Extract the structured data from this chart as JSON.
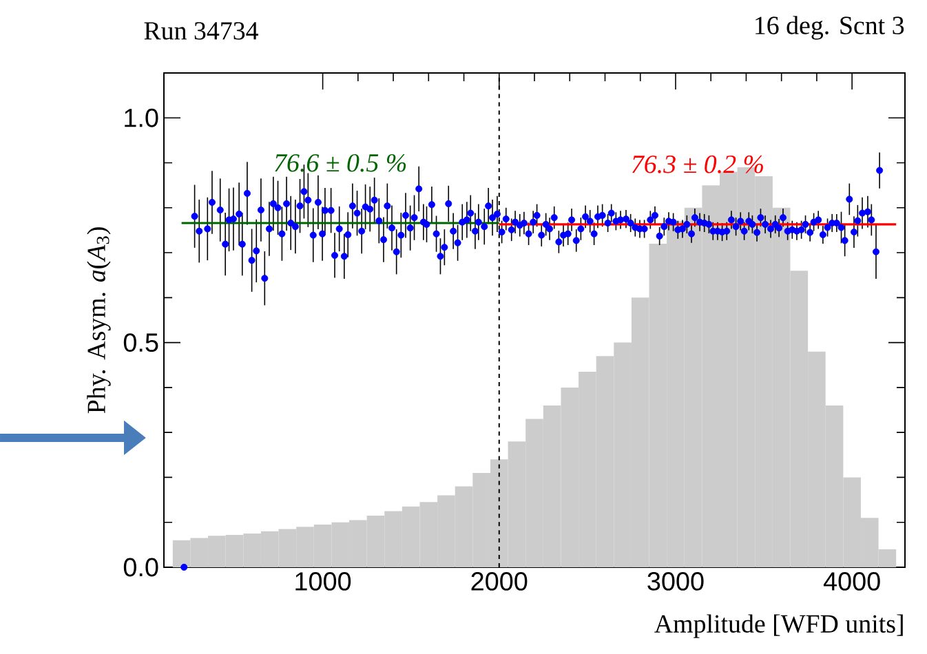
{
  "chart_data": {
    "type": "scatter",
    "title": "Run 34734",
    "subtitle": "16 deg. Scnt 3",
    "xlabel": "Amplitude  [WFD units]",
    "ylabel": "Phy. Asym.  *a*(*A*$_{3}$)",
    "xlim": [
      100,
      4300
    ],
    "ylim": [
      0,
      1.1
    ],
    "xticks": [
      1000,
      2000,
      3000,
      4000
    ],
    "yticks": [
      {
        "value": 0,
        "label": "0.0"
      },
      0.5,
      {
        "value": 1,
        "label": "1.0"
      }
    ],
    "ref_lines": [
      {
        "axis": "x",
        "value": 2000,
        "line_style": "dashed",
        "color": "#000000"
      }
    ],
    "series": [
      {
        "type": "histogram",
        "color": "#cccccc",
        "bins": [
          150,
          250,
          350,
          450,
          550,
          650,
          750,
          850,
          950,
          1050,
          1150,
          1250,
          1350,
          1450,
          1550,
          1650,
          1750,
          1850,
          1950,
          2050,
          2150,
          2250,
          2350,
          2450,
          2550,
          2650,
          2750,
          2850,
          2950,
          3050,
          3150,
          3250,
          3350,
          3450,
          3550,
          3650,
          3750,
          3850,
          3950,
          4050,
          4150,
          4250
        ],
        "values": [
          0.06,
          0.065,
          0.07,
          0.072,
          0.075,
          0.08,
          0.085,
          0.09,
          0.095,
          0.1,
          0.105,
          0.115,
          0.125,
          0.135,
          0.145,
          0.16,
          0.18,
          0.21,
          0.24,
          0.28,
          0.33,
          0.36,
          0.4,
          0.435,
          0.47,
          0.5,
          0.6,
          0.72,
          0.77,
          0.8,
          0.85,
          0.88,
          0.89,
          0.87,
          0.8,
          0.66,
          0.48,
          0.36,
          0.2,
          0.11,
          0.04
        ]
      },
      {
        "color": "#0000ff",
        "marker": "circle",
        "x": [
          214,
          274,
          300,
          347,
          373,
          419,
          448,
          469,
          494,
          526,
          544,
          572,
          598,
          624,
          650,
          671,
          697,
          720,
          746,
          769,
          795,
          819,
          845,
          871,
          894,
          917,
          946,
          974,
          998,
          1013,
          1047,
          1068,
          1094,
          1122,
          1143,
          1169,
          1195,
          1221,
          1242,
          1268,
          1293,
          1319,
          1345,
          1366,
          1392,
          1418,
          1444,
          1470,
          1496,
          1519,
          1545,
          1571,
          1589,
          1618,
          1644,
          1667,
          1690,
          1713,
          1740,
          1765,
          1791,
          1817,
          1838,
          1864,
          1883,
          1916,
          1939,
          1962,
          1989,
          2015,
          2039,
          2070,
          2091,
          2117,
          2141,
          2167,
          2193,
          2214,
          2240,
          2265,
          2286,
          2312,
          2338,
          2364,
          2390,
          2411,
          2437,
          2463,
          2489,
          2515,
          2538,
          2559,
          2585,
          2616,
          2636,
          2662,
          2688,
          2719,
          2745,
          2771,
          2797,
          2823,
          2857,
          2883,
          2909,
          2935,
          2961,
          2987,
          3013,
          3039,
          3064,
          3090,
          3109,
          3137,
          3163,
          3189,
          3212,
          3238,
          3264,
          3290,
          3316,
          3342,
          3368,
          3389,
          3415,
          3435,
          3461,
          3482,
          3508,
          3539,
          3565,
          3586,
          3609,
          3635,
          3661,
          3687,
          3713,
          3736,
          3762,
          3783,
          3809,
          3835,
          3861,
          3887,
          3913,
          3939,
          3959,
          3985,
          4011,
          4032,
          4058,
          4089,
          4110,
          4136,
          4156
        ],
        "values": [
          0,
          0.781,
          0.748,
          0.753,
          0.812,
          0.795,
          0.719,
          0.773,
          0.775,
          0.786,
          0.719,
          0.832,
          0.683,
          0.704,
          0.795,
          0.643,
          0.753,
          0.809,
          0.8,
          0.742,
          0.809,
          0.766,
          0.758,
          0.804,
          0.836,
          0.817,
          0.739,
          0.812,
          0.742,
          0.794,
          0.794,
          0.694,
          0.753,
          0.692,
          0.74,
          0.804,
          0.788,
          0.748,
          0.802,
          0.797,
          0.817,
          0.771,
          0.729,
          0.804,
          0.755,
          0.702,
          0.739,
          0.783,
          0.755,
          0.778,
          0.842,
          0.768,
          0.763,
          0.807,
          0.742,
          0.692,
          0.712,
          0.809,
          0.748,
          0.722,
          0.768,
          0.773,
          0.788,
          0.748,
          0.768,
          0.758,
          0.804,
          0.778,
          0.786,
          0.746,
          0.775,
          0.751,
          0.768,
          0.761,
          0.766,
          0.742,
          0.768,
          0.783,
          0.739,
          0.763,
          0.753,
          0.778,
          0.724,
          0.739,
          0.742,
          0.773,
          0.727,
          0.753,
          0.78,
          0.77,
          0.742,
          0.78,
          0.783,
          0.766,
          0.788,
          0.77,
          0.773,
          0.775,
          0.766,
          0.756,
          0.753,
          0.753,
          0.773,
          0.783,
          0.737,
          0.758,
          0.77,
          0.768,
          0.751,
          0.753,
          0.763,
          0.742,
          0.778,
          0.768,
          0.766,
          0.763,
          0.748,
          0.748,
          0.746,
          0.748,
          0.773,
          0.758,
          0.77,
          0.748,
          0.77,
          0.763,
          0.745,
          0.778,
          0.763,
          0.753,
          0.763,
          0.755,
          0.778,
          0.748,
          0.751,
          0.748,
          0.751,
          0.763,
          0.745,
          0.768,
          0.773,
          0.74,
          0.756,
          0.766,
          0.766,
          0.756,
          0.727,
          0.819,
          0.746,
          0.771,
          0.788,
          0.791,
          0.773,
          0.702,
          0.883
        ],
        "errors": [
          null,
          0.07,
          0.07,
          0.07,
          0.07,
          0.07,
          0.07,
          0.07,
          0.07,
          0.07,
          0.07,
          0.07,
          0.07,
          0.07,
          0.07,
          0.06,
          0.06,
          0.06,
          0.06,
          0.06,
          0.06,
          0.06,
          0.06,
          0.06,
          0.06,
          0.06,
          0.06,
          0.06,
          0.06,
          0.05,
          0.05,
          0.05,
          0.05,
          0.05,
          0.05,
          0.05,
          0.05,
          0.05,
          0.05,
          0.05,
          0.05,
          0.05,
          0.05,
          0.05,
          0.05,
          0.05,
          0.05,
          0.05,
          0.05,
          0.05,
          0.05,
          0.04,
          0.04,
          0.04,
          0.04,
          0.04,
          0.04,
          0.04,
          0.04,
          0.04,
          0.04,
          0.04,
          0.04,
          0.04,
          0.04,
          0.04,
          0.04,
          0.04,
          0.04,
          0.025,
          0.025,
          0.025,
          0.025,
          0.025,
          0.025,
          0.025,
          0.025,
          0.025,
          0.025,
          0.025,
          0.025,
          0.025,
          0.025,
          0.025,
          0.025,
          0.025,
          0.025,
          0.025,
          0.025,
          0.025,
          0.025,
          0.025,
          0.025,
          0.02,
          0.02,
          0.02,
          0.02,
          0.02,
          0.02,
          0.02,
          0.02,
          0.02,
          0.02,
          0.02,
          0.02,
          0.02,
          0.02,
          0.02,
          0.02,
          0.02,
          0.02,
          0.02,
          0.02,
          0.02,
          0.02,
          0.02,
          0.02,
          0.02,
          0.02,
          0.02,
          0.02,
          0.02,
          0.02,
          0.02,
          0.02,
          0.02,
          0.02,
          0.02,
          0.02,
          0.02,
          0.02,
          0.02,
          0.02,
          0.02,
          0.02,
          0.02,
          0.02,
          0.02,
          0.02,
          0.02,
          0.02,
          0.02,
          0.02,
          0.02,
          0.02,
          0.035,
          0.035,
          0.035,
          0.035,
          0.035,
          0.035,
          0.035,
          0.035,
          0.06,
          0.04
        ]
      },
      {
        "type": "line",
        "name": "76.6 ± 0.5 %",
        "color": "#006400",
        "marker": "none",
        "x": [
          200,
          2000
        ],
        "values": [
          0.766,
          0.766
        ]
      },
      {
        "type": "line",
        "name": "76.3 ± 0.2 %",
        "color": "#ff0000",
        "marker": "none",
        "x": [
          2000,
          4250
        ],
        "values": [
          0.763,
          0.763
        ]
      }
    ]
  }
}
